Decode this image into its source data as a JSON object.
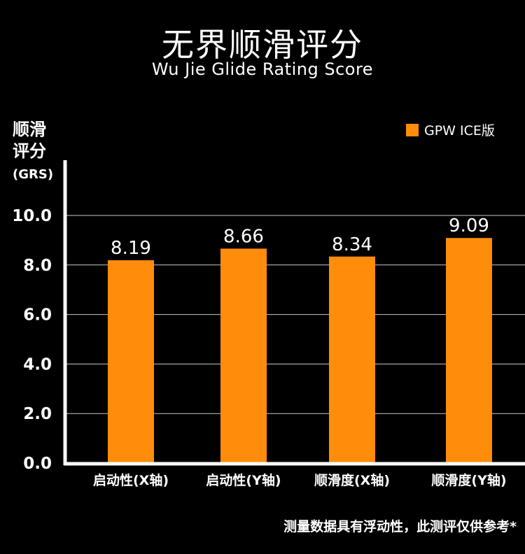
{
  "colors": {
    "background": "#000000",
    "bar": "#ff8c0a",
    "axis": "#ffffff",
    "grid": "#c8c8c8"
  },
  "chart_data": {
    "type": "bar",
    "title": "无界顺滑评分",
    "subtitle": "Wu Jie Glide Rating Score",
    "ylabel": [
      "顺滑",
      "评分",
      "(GRS)"
    ],
    "categories": [
      "启动性(X轴)",
      "启动性(Y轴)",
      "顺滑度(X轴)",
      "顺滑度(Y轴)"
    ],
    "series": [
      {
        "name": "GPW ICE版",
        "values": [
          8.19,
          8.66,
          8.34,
          9.09
        ]
      }
    ],
    "data_labels": [
      "8.19",
      "8.66",
      "8.34",
      "9.09"
    ],
    "yticks": [
      "0.0",
      "2.0",
      "4.0",
      "6.0",
      "8.0",
      "10.0"
    ],
    "ylim": [
      0,
      10
    ],
    "grid": true,
    "legend_position": "top-right"
  },
  "footnote": "测量数据具有浮动性，此测评仅供参考*"
}
